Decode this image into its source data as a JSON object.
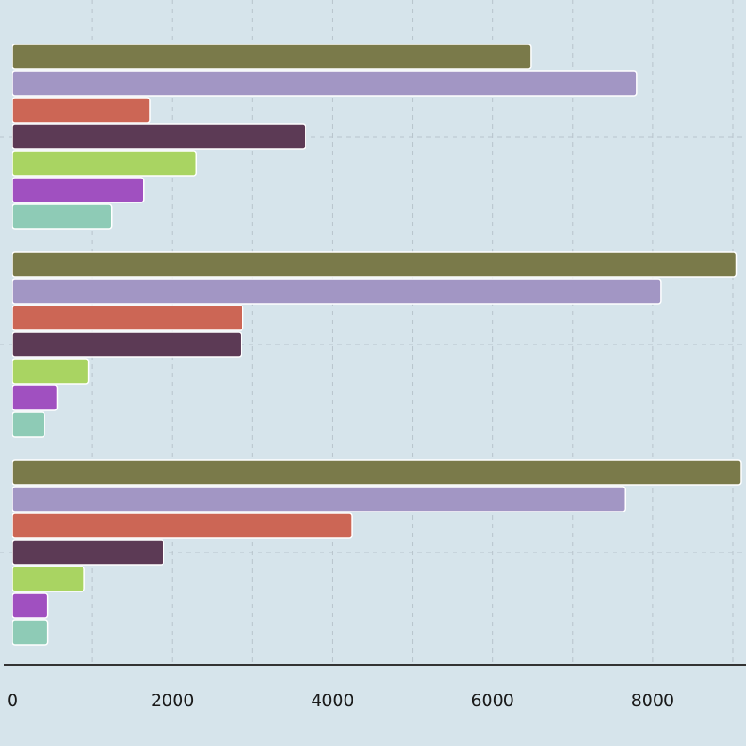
{
  "chart_data": {
    "type": "bar",
    "orientation": "horizontal",
    "title": "",
    "xlabel": "",
    "ylabel": "",
    "xlim": [
      0,
      9100
    ],
    "x_ticks": [
      0,
      2000,
      4000,
      6000,
      8000
    ],
    "x_tick_labels": [
      "0",
      "2000",
      "4000",
      "6000",
      "8000"
    ],
    "grid": true,
    "legend": "none",
    "categories": [
      "",
      "",
      ""
    ],
    "series": [
      {
        "color": "#7a7a4a",
        "values": [
          6480,
          9050,
          9100
        ]
      },
      {
        "color": "#a296c4",
        "values": [
          7800,
          8100,
          7660
        ]
      },
      {
        "color": "#cc6655",
        "values": [
          1720,
          2880,
          4240
        ]
      },
      {
        "color": "#5c3a55",
        "values": [
          3660,
          2860,
          1890
        ]
      },
      {
        "color": "#a9d462",
        "values": [
          2300,
          950,
          900
        ]
      },
      {
        "color": "#a050c0",
        "values": [
          1640,
          560,
          440
        ]
      },
      {
        "color": "#8ecbb6",
        "values": [
          1240,
          400,
          440
        ]
      }
    ]
  },
  "colors": {
    "background": "#d6e4eb",
    "grid": "#b8c4cc",
    "axis": "#333333",
    "bar_stroke": "#ffffff"
  }
}
